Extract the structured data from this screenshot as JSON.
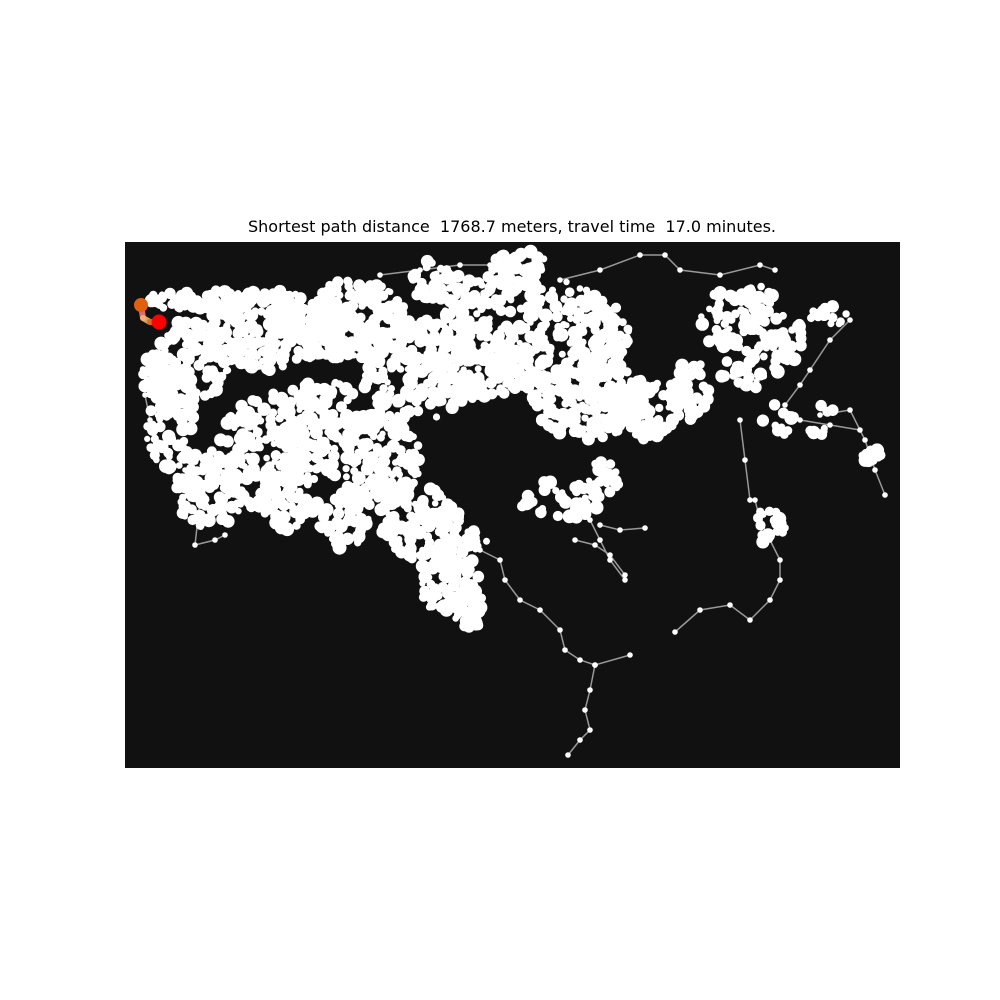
{
  "figure": {
    "title": "Shortest path distance  1768.7 meters, travel time  17.0 minutes."
  },
  "map": {
    "background_color": "#111111",
    "node_color": "#ffffff",
    "edge_color": "#999999",
    "route": {
      "colors": [
        "#ff0000",
        "#ff8080",
        "#ffb870",
        "#e06010"
      ],
      "origin_marker_color": "#e06010",
      "destination_marker_color": "#ff0000"
    }
  }
}
